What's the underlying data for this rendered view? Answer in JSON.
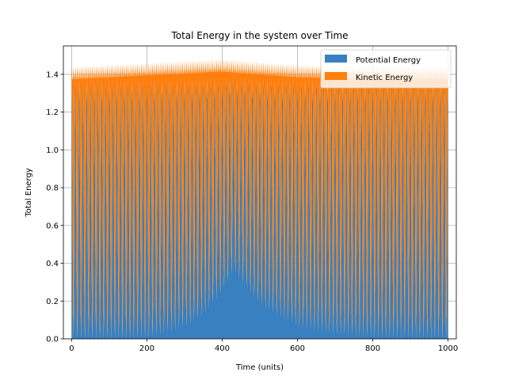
{
  "chart_data": {
    "type": "area",
    "title": "Total Energy in the system over Time",
    "xlabel": "Time (units)",
    "ylabel": "Total Energy",
    "xlim": [
      -22,
      1022
    ],
    "ylim": [
      0,
      1.55
    ],
    "xticks": [
      0,
      200,
      400,
      600,
      800,
      1000
    ],
    "yticks": [
      0.0,
      0.2,
      0.4,
      0.6,
      0.8,
      1.0,
      1.2,
      1.4
    ],
    "xtick_labels": [
      "0",
      "200",
      "400",
      "600",
      "800",
      "1000"
    ],
    "ytick_labels": [
      "0.0",
      "0.2",
      "0.4",
      "0.6",
      "0.8",
      "1.0",
      "1.2",
      "1.4"
    ],
    "grid": true,
    "stacked": true,
    "legend_position": "top-right",
    "oscillation_period": 10,
    "series": [
      {
        "name": "Potential Energy",
        "color": "#3880c0",
        "envelope": {
          "x": [
            0,
            100,
            200,
            300,
            350,
            400,
            430,
            460,
            500,
            600,
            700,
            800,
            900,
            1000
          ],
          "min": [
            0.0,
            0.0,
            0.0,
            0.06,
            0.12,
            0.25,
            0.36,
            0.28,
            0.18,
            0.06,
            0.02,
            0.0,
            0.0,
            0.0
          ],
          "max": [
            1.38,
            1.38,
            1.38,
            1.38,
            1.38,
            1.38,
            1.38,
            1.38,
            1.38,
            1.38,
            1.38,
            1.38,
            1.38,
            1.38
          ]
        }
      },
      {
        "name": "Kinetic Energy",
        "color": "#ff7f0e",
        "total_max_envelope": {
          "x": [
            0,
            200,
            400,
            600,
            800,
            1000
          ],
          "max": [
            1.44,
            1.46,
            1.48,
            1.45,
            1.44,
            1.44
          ]
        }
      }
    ]
  }
}
